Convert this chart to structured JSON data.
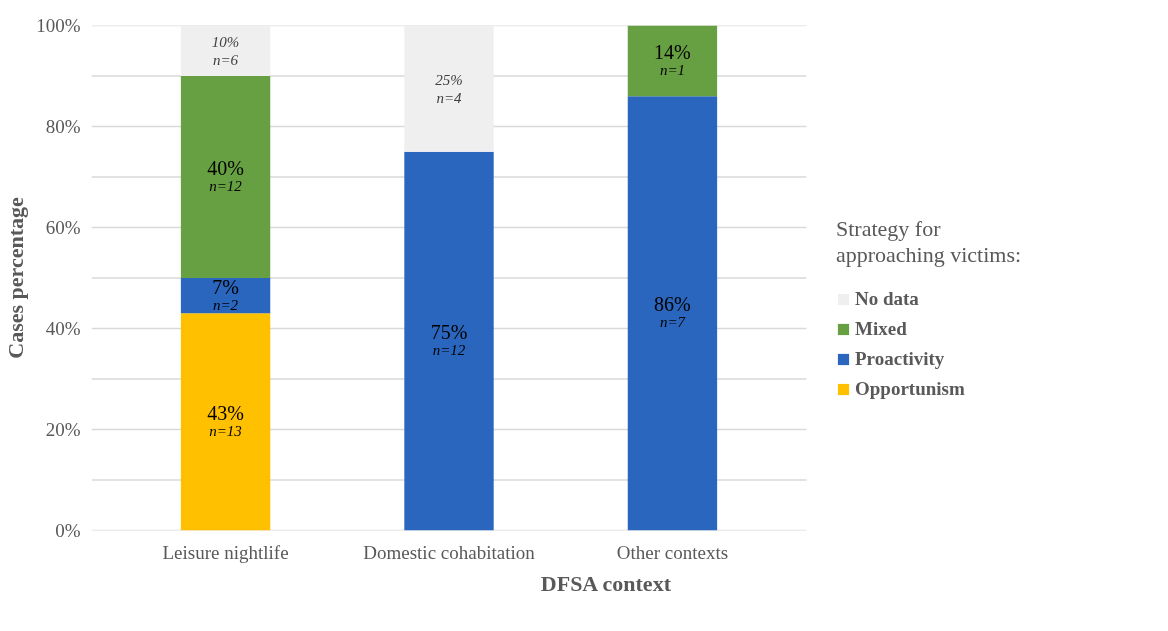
{
  "chart_data": {
    "type": "bar",
    "stacked": true,
    "xlabel": "DFSA context",
    "ylabel": "Cases percentage",
    "legend_title": "Strategy for approaching victims:",
    "categories": [
      "Leisure nightlife",
      "Domestic cohabitation",
      "Other contexts"
    ],
    "series": [
      {
        "name": "Opportunism",
        "color": "#ffc000",
        "values": [
          43,
          0,
          0
        ],
        "value_labels": [
          "43%\nn=13",
          null,
          null
        ]
      },
      {
        "name": "Proactivity",
        "color": "#2a66bd",
        "values": [
          7,
          75,
          86
        ],
        "value_labels": [
          "7%\nn=2",
          "75%\nn=12",
          "86%\nn=7"
        ]
      },
      {
        "name": "Mixed",
        "color": "#67a043",
        "values": [
          40,
          0,
          14
        ],
        "value_labels": [
          "40%\nn=12",
          null,
          "14%\nn=1"
        ]
      },
      {
        "name": "No data",
        "color": "#efefef",
        "values": [
          10,
          25,
          0
        ],
        "value_labels": [
          "10%\nn=6",
          "25%\nn=4",
          null
        ]
      }
    ],
    "ylim": [
      0,
      100
    ],
    "yticks": [
      {
        "value": 0,
        "label": "0%"
      },
      {
        "value": 10,
        "label": null
      },
      {
        "value": 20,
        "label": "20%"
      },
      {
        "value": 30,
        "label": null
      },
      {
        "value": 40,
        "label": "40%"
      },
      {
        "value": 50,
        "label": null
      },
      {
        "value": 60,
        "label": "60%"
      },
      {
        "value": 70,
        "label": null
      },
      {
        "value": 80,
        "label": "80%"
      },
      {
        "value": 90,
        "label": null
      },
      {
        "value": 100,
        "label": "100%"
      }
    ],
    "grid": "y",
    "legend": "right"
  }
}
